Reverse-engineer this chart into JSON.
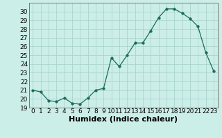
{
  "x": [
    0,
    1,
    2,
    3,
    4,
    5,
    6,
    7,
    8,
    9,
    10,
    11,
    12,
    13,
    14,
    15,
    16,
    17,
    18,
    19,
    20,
    21,
    22,
    23
  ],
  "y": [
    21.0,
    20.8,
    19.8,
    19.7,
    20.1,
    19.5,
    19.4,
    20.1,
    21.0,
    21.2,
    24.7,
    23.7,
    25.0,
    26.4,
    26.4,
    27.8,
    29.3,
    30.3,
    30.3,
    29.8,
    29.2,
    28.3,
    25.3,
    23.2
  ],
  "line_color": "#1a6b5a",
  "marker": "o",
  "marker_size": 2.5,
  "bg_color": "#cceee8",
  "grid_color": "#aad4cc",
  "xlabel": "Humidex (Indice chaleur)",
  "xlabel_fontsize": 8,
  "tick_fontsize": 6.5,
  "ylim": [
    19,
    31
  ],
  "xlim": [
    -0.5,
    23.5
  ],
  "yticks": [
    19,
    20,
    21,
    22,
    23,
    24,
    25,
    26,
    27,
    28,
    29,
    30
  ],
  "xticks": [
    0,
    1,
    2,
    3,
    4,
    5,
    6,
    7,
    8,
    9,
    10,
    11,
    12,
    13,
    14,
    15,
    16,
    17,
    18,
    19,
    20,
    21,
    22,
    23
  ]
}
